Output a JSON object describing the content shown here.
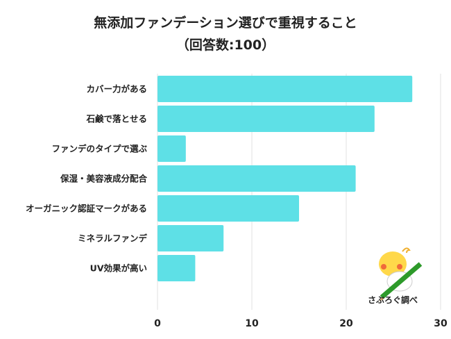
{
  "chart_data": {
    "type": "bar",
    "orientation": "horizontal",
    "title": "無添加ファンデーション選びで重視すること",
    "subtitle": "（回答数:100）",
    "categories": [
      "カバー力がある",
      "石鹸で落とせる",
      "ファンデのタイプで選ぶ",
      "保湿・美容液成分配合",
      "オーガニック認証マークがある",
      "ミネラルファンデ",
      "UV効果が高い"
    ],
    "values": [
      27,
      23,
      3,
      21,
      15,
      7,
      4
    ],
    "xlim": [
      0,
      30
    ],
    "xticks": [
      0,
      10,
      20,
      30
    ],
    "grid": true,
    "bar_color": "#5ee0e6",
    "xlabel": "",
    "ylabel": ""
  },
  "logo": {
    "text": "さぶろぐ調べ"
  }
}
